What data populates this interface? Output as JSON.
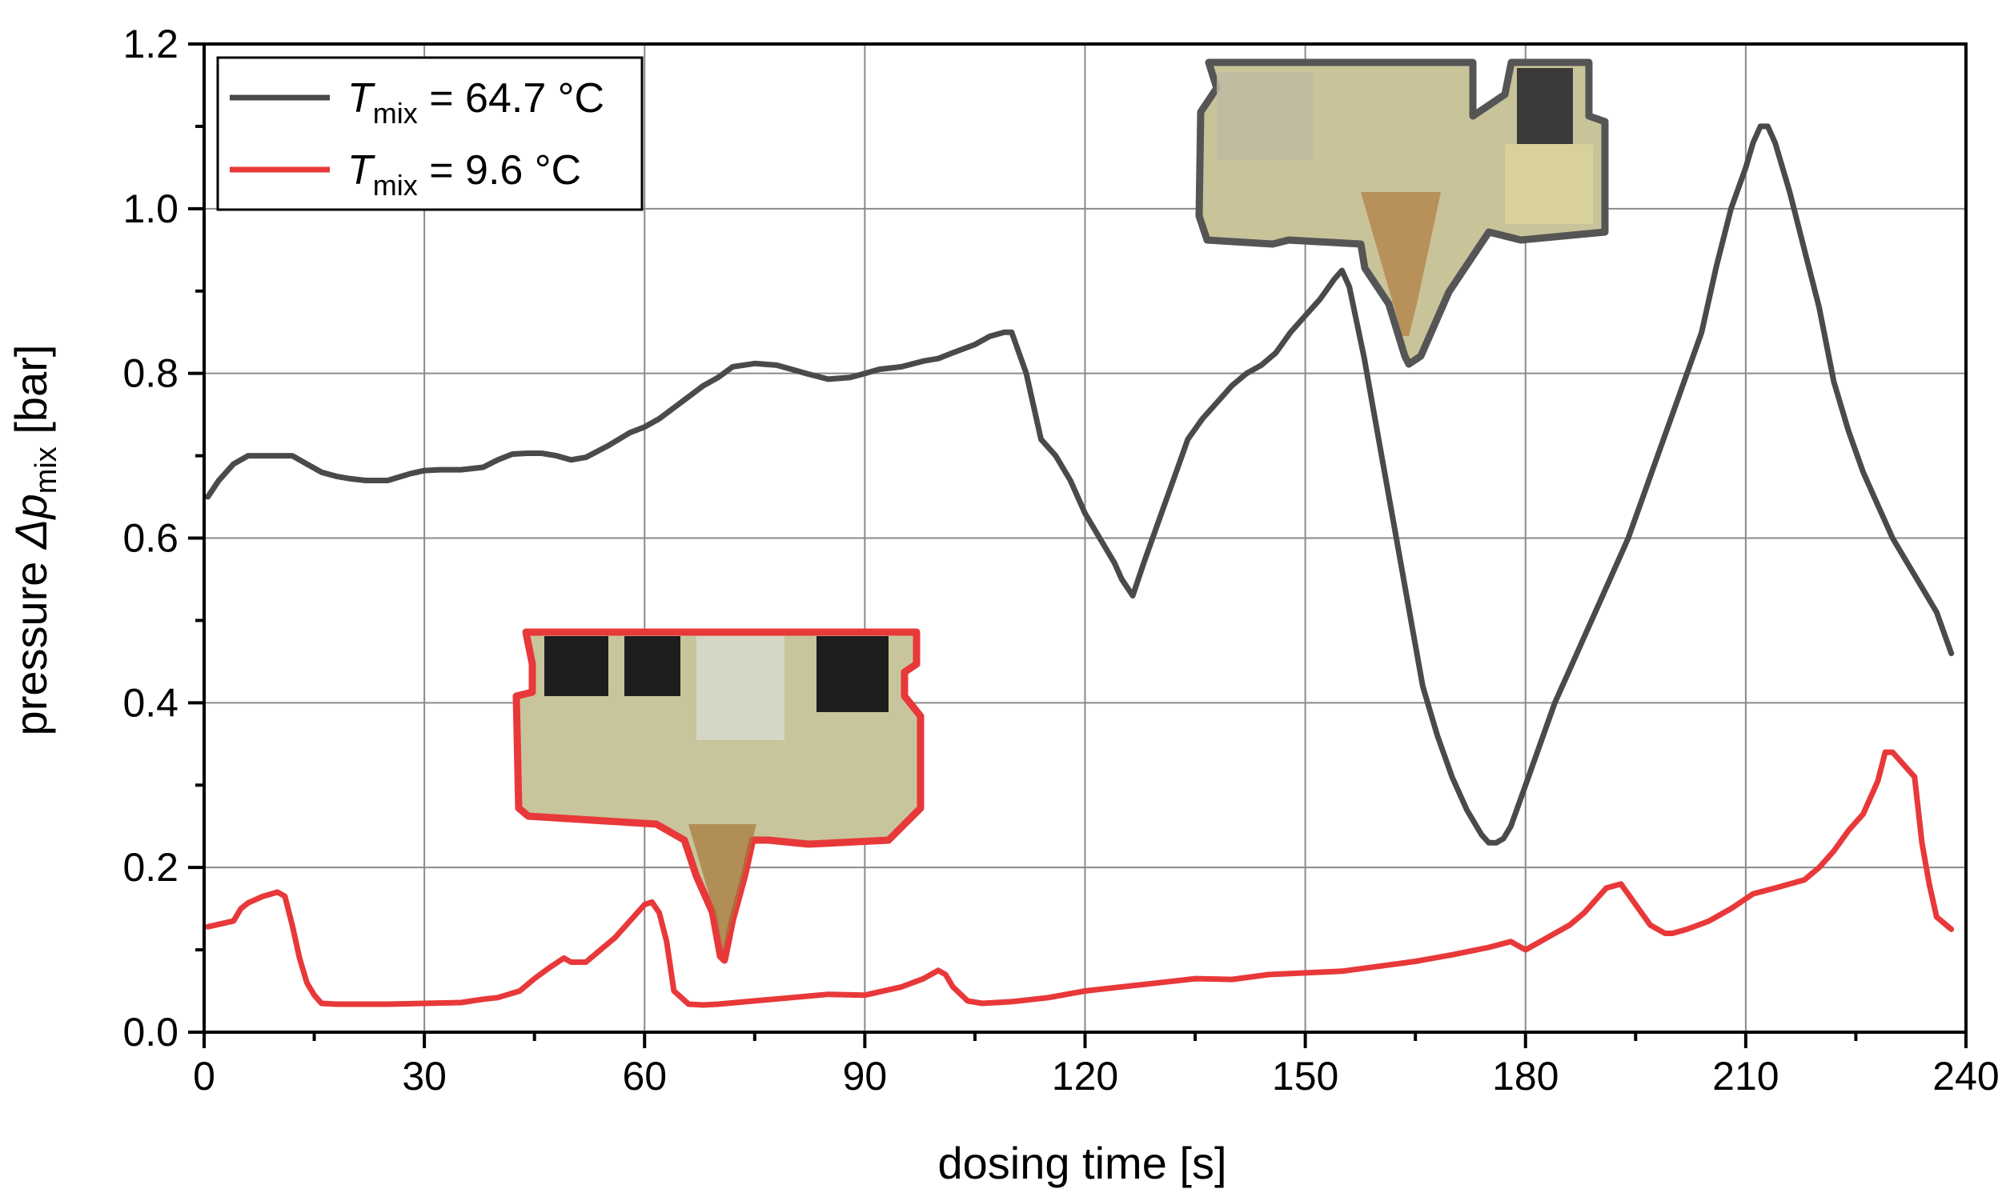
{
  "chart_data": {
    "type": "line",
    "xlabel": "dosing time [s]",
    "ylabel": {
      "prefix": "pressure ",
      "symbol": "Δp",
      "subscript": "mix",
      "unit": " [bar]"
    },
    "xlim": [
      0,
      240
    ],
    "ylim": [
      0,
      1.2
    ],
    "x_ticks": [
      0,
      30,
      60,
      90,
      120,
      150,
      180,
      210,
      240
    ],
    "x_tick_labels": [
      "0",
      "30",
      "60",
      "90",
      "120",
      "150",
      "180",
      "210",
      "240"
    ],
    "y_ticks": [
      0,
      0.2,
      0.4,
      0.6,
      0.8,
      1.0,
      1.2
    ],
    "y_tick_labels": [
      "0.0",
      "0.2",
      "0.4",
      "0.6",
      "0.8",
      "1.0",
      "1.2"
    ],
    "grid": true,
    "legend_position": "top-left",
    "series": [
      {
        "name": "T_mix = 64.7 °C",
        "legend": {
          "symbol": "T",
          "subscript": "mix",
          "suffix": " = 64.7 °C"
        },
        "color": "#4a4a4a",
        "x": [
          0.5,
          2,
          4,
          6,
          8,
          10,
          12,
          14,
          16,
          18,
          20,
          22,
          25,
          28,
          30,
          32,
          35,
          38,
          40,
          42,
          44,
          46,
          48,
          50,
          52,
          55,
          58,
          60,
          62,
          65,
          68,
          70,
          72,
          75,
          78,
          80,
          82,
          85,
          88,
          90,
          92,
          95,
          98,
          100,
          102,
          105,
          107,
          109,
          110,
          112,
          114,
          116,
          118,
          120,
          122,
          124,
          125,
          126.5,
          128,
          130,
          132,
          134,
          136,
          138,
          140,
          142,
          144,
          146,
          148,
          150,
          152,
          154,
          155,
          156,
          158,
          160,
          162,
          164,
          166,
          168,
          170,
          172,
          174,
          175,
          176,
          177,
          178,
          180,
          182,
          184,
          186,
          188,
          190,
          192,
          194,
          196,
          198,
          200,
          202,
          204,
          206,
          208,
          210,
          211,
          212,
          213,
          214,
          216,
          218,
          220,
          222,
          224,
          226,
          228,
          230,
          232,
          234,
          236,
          238
        ],
        "y": [
          0.65,
          0.67,
          0.69,
          0.7,
          0.7,
          0.7,
          0.7,
          0.69,
          0.68,
          0.675,
          0.672,
          0.67,
          0.67,
          0.678,
          0.682,
          0.683,
          0.683,
          0.686,
          0.695,
          0.702,
          0.703,
          0.703,
          0.7,
          0.695,
          0.698,
          0.712,
          0.728,
          0.735,
          0.745,
          0.765,
          0.785,
          0.795,
          0.808,
          0.812,
          0.81,
          0.805,
          0.8,
          0.793,
          0.795,
          0.8,
          0.805,
          0.808,
          0.815,
          0.818,
          0.825,
          0.835,
          0.845,
          0.85,
          0.85,
          0.8,
          0.72,
          0.7,
          0.67,
          0.63,
          0.6,
          0.57,
          0.55,
          0.53,
          0.57,
          0.62,
          0.67,
          0.72,
          0.745,
          0.765,
          0.785,
          0.8,
          0.81,
          0.825,
          0.85,
          0.87,
          0.89,
          0.915,
          0.925,
          0.905,
          0.82,
          0.72,
          0.62,
          0.52,
          0.42,
          0.36,
          0.31,
          0.27,
          0.24,
          0.23,
          0.23,
          0.235,
          0.25,
          0.3,
          0.35,
          0.4,
          0.44,
          0.48,
          0.52,
          0.56,
          0.6,
          0.65,
          0.7,
          0.75,
          0.8,
          0.85,
          0.93,
          1.0,
          1.05,
          1.08,
          1.1,
          1.1,
          1.08,
          1.02,
          0.95,
          0.88,
          0.79,
          0.73,
          0.68,
          0.64,
          0.6,
          0.57,
          0.54,
          0.51,
          0.46
        ]
      },
      {
        "name": "T_mix = 9.6 °C",
        "legend": {
          "symbol": "T",
          "subscript": "mix",
          "suffix": " = 9.6 °C"
        },
        "color": "#e8383a",
        "x": [
          0.5,
          2,
          4,
          5,
          6,
          8,
          10,
          11,
          12,
          13,
          14,
          15,
          16,
          18,
          20,
          25,
          30,
          35,
          38,
          40,
          43,
          45,
          47,
          49,
          50,
          52,
          54,
          56,
          58,
          60,
          61,
          62,
          63,
          64,
          66,
          68,
          70,
          75,
          80,
          85,
          90,
          95,
          98,
          100,
          101,
          102,
          104,
          106,
          110,
          115,
          120,
          125,
          130,
          135,
          140,
          145,
          150,
          155,
          160,
          165,
          170,
          175,
          178,
          180,
          182,
          184,
          186,
          188,
          190,
          191,
          193,
          195,
          197,
          199,
          200,
          202,
          205,
          208,
          211,
          214,
          218,
          220,
          222,
          224,
          226,
          228,
          229,
          230,
          231,
          232,
          233,
          234,
          235,
          236,
          238
        ],
        "y": [
          0.128,
          0.131,
          0.135,
          0.15,
          0.157,
          0.165,
          0.17,
          0.165,
          0.13,
          0.09,
          0.06,
          0.045,
          0.035,
          0.034,
          0.034,
          0.034,
          0.035,
          0.036,
          0.04,
          0.042,
          0.05,
          0.065,
          0.078,
          0.09,
          0.085,
          0.085,
          0.1,
          0.115,
          0.135,
          0.155,
          0.158,
          0.145,
          0.11,
          0.05,
          0.034,
          0.033,
          0.034,
          0.038,
          0.042,
          0.046,
          0.045,
          0.055,
          0.065,
          0.075,
          0.07,
          0.055,
          0.038,
          0.035,
          0.037,
          0.042,
          0.05,
          0.055,
          0.06,
          0.065,
          0.064,
          0.07,
          0.072,
          0.074,
          0.08,
          0.086,
          0.094,
          0.103,
          0.11,
          0.1,
          0.11,
          0.12,
          0.13,
          0.145,
          0.165,
          0.175,
          0.18,
          0.155,
          0.13,
          0.12,
          0.12,
          0.125,
          0.135,
          0.15,
          0.168,
          0.175,
          0.185,
          0.2,
          0.22,
          0.245,
          0.265,
          0.305,
          0.34,
          0.34,
          0.33,
          0.32,
          0.31,
          0.23,
          0.18,
          0.14,
          0.125
        ]
      }
    ]
  },
  "annotations": {
    "photo_top": {
      "icon": "nozzle-photo-icon",
      "border_color": "#555555"
    },
    "photo_bottom": {
      "icon": "nozzle-photo-icon",
      "border_color": "#e8383a"
    }
  }
}
